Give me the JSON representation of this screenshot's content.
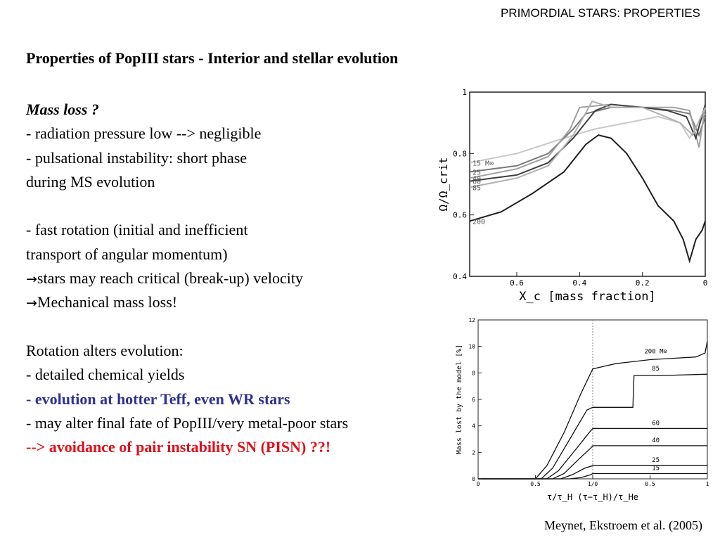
{
  "header": "PRIMORDIAL STARS: PROPERTIES",
  "title": "Properties of PopIII stars - Interior and stellar evolution",
  "lines": {
    "mass_loss": "Mass loss ?",
    "l1": "- radiation pressure low --> negligible",
    "l2": "- pulsational instability: short phase",
    "l3": "during MS evolution",
    "l4": "- fast rotation (initial and inefficient",
    "l5": "transport of angular momentum)",
    "l6_arrow": "→",
    "l6": "stars may reach critical (break-up) velocity",
    "l7_arrow": "→",
    "l7": "Mechanical mass loss!",
    "l8": "Rotation alters evolution:",
    "l9": "- detailed chemical yields",
    "l10_dash": "- ",
    "l10": "evolution at hotter Teff, even WR stars",
    "l11": "- may alter final fate of PopIII/very metal-poor stars",
    "l12": "--> avoidance of pair instability SN (PISN) ??!"
  },
  "citation": "Meynet, Ekstroem et al. (2005)",
  "colors": {
    "blue_text": "#2e3192",
    "red_text": "#e0101a"
  },
  "chart_data": [
    {
      "type": "line",
      "xlabel": "X_c [mass fraction]",
      "ylabel": "Ω/Ω_crit",
      "xlim": [
        0.75,
        0
      ],
      "ylim": [
        0.4,
        1
      ],
      "x_ticks": [
        "0.6",
        "0.4",
        "0.2",
        "0"
      ],
      "y_ticks": [
        "0.4",
        "0.6",
        "0.8",
        "1"
      ],
      "series": [
        {
          "name": "15 M⊙",
          "color": "#c8c8c8",
          "points": [
            [
              0.75,
              0.77
            ],
            [
              0.6,
              0.8
            ],
            [
              0.45,
              0.85
            ],
            [
              0.35,
              0.88
            ],
            [
              0.25,
              0.9
            ],
            [
              0.15,
              0.92
            ],
            [
              0.08,
              0.9
            ],
            [
              0.05,
              0.85
            ],
            [
              0.02,
              0.9
            ],
            [
              0,
              0.93
            ]
          ]
        },
        {
          "name": "25",
          "color": "#7a7a7a",
          "points": [
            [
              0.75,
              0.74
            ],
            [
              0.6,
              0.76
            ],
            [
              0.5,
              0.8
            ],
            [
              0.42,
              0.88
            ],
            [
              0.38,
              0.93
            ],
            [
              0.3,
              0.95
            ],
            [
              0.2,
              0.95
            ],
            [
              0.1,
              0.94
            ],
            [
              0.05,
              0.93
            ],
            [
              0.02,
              0.86
            ],
            [
              0,
              0.92
            ]
          ]
        },
        {
          "name": "40",
          "color": "#a0a0a0",
          "points": [
            [
              0.75,
              0.72
            ],
            [
              0.6,
              0.75
            ],
            [
              0.5,
              0.79
            ],
            [
              0.43,
              0.88
            ],
            [
              0.4,
              0.95
            ],
            [
              0.3,
              0.96
            ],
            [
              0.2,
              0.95
            ],
            [
              0.1,
              0.95
            ],
            [
              0.05,
              0.94
            ],
            [
              0.02,
              0.82
            ],
            [
              0,
              0.95
            ]
          ]
        },
        {
          "name": "60",
          "color": "#404040",
          "points": [
            [
              0.75,
              0.71
            ],
            [
              0.6,
              0.73
            ],
            [
              0.5,
              0.77
            ],
            [
              0.42,
              0.85
            ],
            [
              0.35,
              0.94
            ],
            [
              0.3,
              0.96
            ],
            [
              0.2,
              0.95
            ],
            [
              0.12,
              0.94
            ],
            [
              0.06,
              0.92
            ],
            [
              0.03,
              0.85
            ],
            [
              0,
              0.96
            ]
          ]
        },
        {
          "name": "85",
          "color": "#b0b0b0",
          "points": [
            [
              0.75,
              0.69
            ],
            [
              0.6,
              0.72
            ],
            [
              0.5,
              0.76
            ],
            [
              0.42,
              0.86
            ],
            [
              0.36,
              0.97
            ],
            [
              0.3,
              0.95
            ],
            [
              0.2,
              0.95
            ],
            [
              0.15,
              0.93
            ],
            [
              0.08,
              0.9
            ],
            [
              0.04,
              0.86
            ],
            [
              0,
              0.95
            ]
          ]
        },
        {
          "name": "200",
          "color": "#202020",
          "points": [
            [
              0.75,
              0.58
            ],
            [
              0.65,
              0.61
            ],
            [
              0.55,
              0.67
            ],
            [
              0.45,
              0.74
            ],
            [
              0.38,
              0.83
            ],
            [
              0.34,
              0.86
            ],
            [
              0.3,
              0.85
            ],
            [
              0.25,
              0.8
            ],
            [
              0.2,
              0.72
            ],
            [
              0.15,
              0.63
            ],
            [
              0.1,
              0.58
            ],
            [
              0.07,
              0.52
            ],
            [
              0.05,
              0.45
            ],
            [
              0.03,
              0.52
            ],
            [
              0.01,
              0.55
            ],
            [
              0,
              0.58
            ]
          ]
        }
      ]
    },
    {
      "type": "line",
      "xlabel": "τ/τ_H   (τ−τ_H)/τ_He",
      "ylabel": "Mass lost by the model [%]",
      "xlim": [
        0,
        2
      ],
      "ylim": [
        0,
        12
      ],
      "x_ticks": [
        "0",
        "0.5",
        "1/0",
        "0.5",
        "1"
      ],
      "y_ticks": [
        "0",
        "2",
        "4",
        "6",
        "8",
        "10",
        "12"
      ],
      "series": [
        {
          "name": "200 M⊙",
          "points": [
            [
              0,
              0
            ],
            [
              0.5,
              0
            ],
            [
              0.6,
              1
            ],
            [
              0.75,
              3.5
            ],
            [
              0.9,
              6.5
            ],
            [
              1,
              8.3
            ],
            [
              1.1,
              8.5
            ],
            [
              1.2,
              8.7
            ],
            [
              1.5,
              9
            ],
            [
              1.7,
              9.1
            ],
            [
              1.9,
              9.2
            ],
            [
              1.98,
              9.5
            ],
            [
              2,
              10.4
            ]
          ]
        },
        {
          "name": "85",
          "points": [
            [
              0,
              0
            ],
            [
              0.55,
              0
            ],
            [
              0.65,
              0.8
            ],
            [
              0.8,
              3
            ],
            [
              0.95,
              5.2
            ],
            [
              1,
              5.4
            ],
            [
              1.35,
              5.4
            ],
            [
              1.36,
              7.8
            ],
            [
              1.6,
              7.8
            ],
            [
              2,
              7.9
            ]
          ]
        },
        {
          "name": "60",
          "points": [
            [
              0,
              0
            ],
            [
              0.6,
              0
            ],
            [
              0.7,
              0.6
            ],
            [
              0.85,
              2.2
            ],
            [
              0.97,
              3.5
            ],
            [
              1,
              3.8
            ],
            [
              2,
              3.8
            ]
          ]
        },
        {
          "name": "40",
          "points": [
            [
              0,
              0
            ],
            [
              0.65,
              0
            ],
            [
              0.75,
              0.4
            ],
            [
              0.88,
              1.5
            ],
            [
              0.98,
              2.3
            ],
            [
              1,
              2.5
            ],
            [
              2,
              2.5
            ]
          ]
        },
        {
          "name": "25",
          "points": [
            [
              0,
              0
            ],
            [
              0.72,
              0
            ],
            [
              0.82,
              0.3
            ],
            [
              0.93,
              0.8
            ],
            [
              1,
              1
            ],
            [
              2,
              1
            ]
          ]
        },
        {
          "name": "15",
          "points": [
            [
              0,
              0
            ],
            [
              0.8,
              0
            ],
            [
              0.9,
              0.1
            ],
            [
              0.98,
              0.3
            ],
            [
              1,
              0.4
            ],
            [
              2,
              0.4
            ]
          ]
        }
      ]
    }
  ]
}
